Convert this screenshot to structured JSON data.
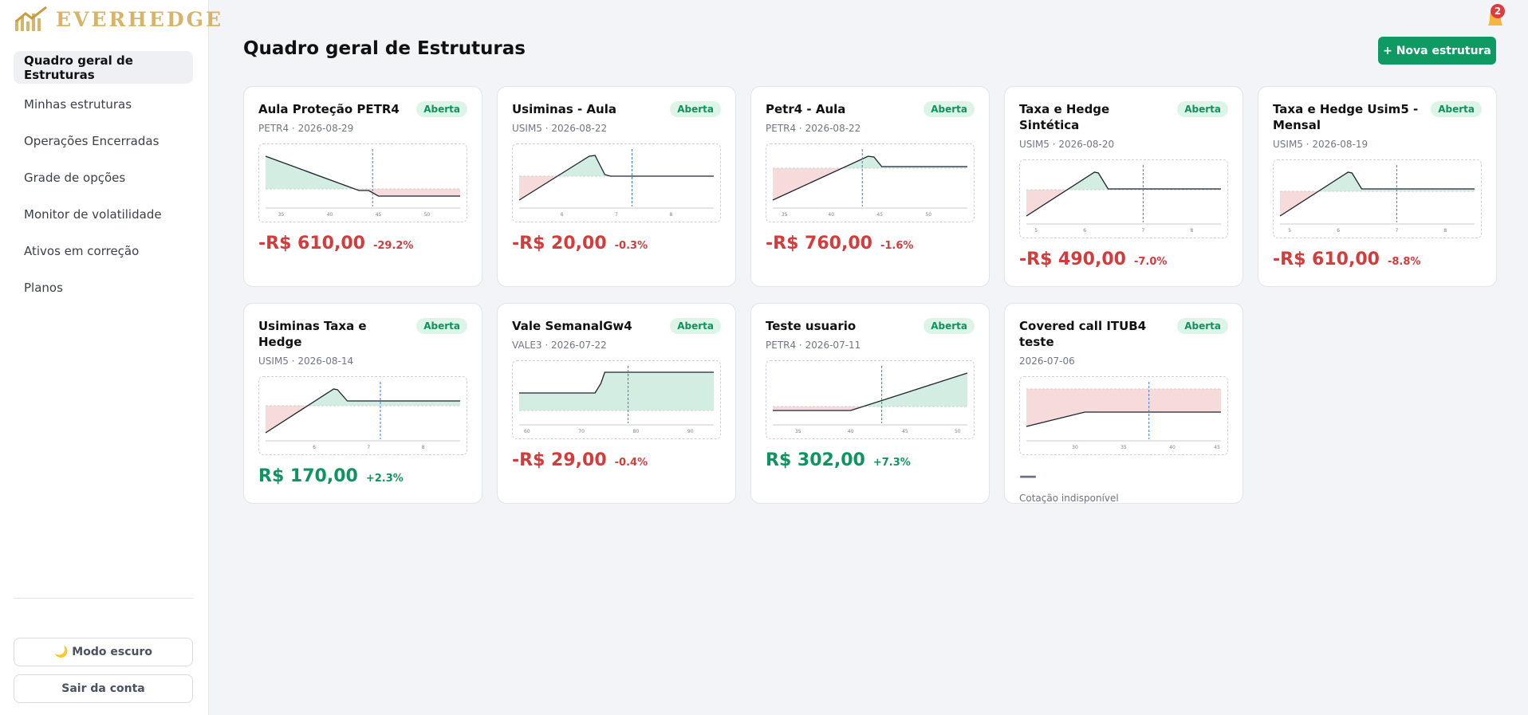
{
  "logo": "EVERHEDGE",
  "nav": [
    "Quadro geral de Estruturas",
    "Minhas estruturas",
    "Operações Encerradas",
    "Grade de opções",
    "Monitor de volatilidade",
    "Ativos em correção",
    "Planos"
  ],
  "footer_buttons": [
    "🌙 Modo escuro",
    "Sair da conta"
  ],
  "header": {
    "title": "Quadro geral de Estruturas",
    "button": "+ Nova estrutura",
    "notification_count": 2
  },
  "cards": [
    {
      "title": "Aula Proteção PETR4",
      "status": "Aberta",
      "subtitle": "PETR4 · 2026-08-29",
      "chart_ticks": [
        35,
        40,
        45,
        50
      ],
      "pnl": "-R$ 610,00",
      "change": "-29.2%"
    },
    {
      "title": "Usiminas - Aula",
      "status": "Aberta",
      "subtitle": "USIM5 · 2026-08-22",
      "chart_ticks": [
        6,
        7,
        8
      ],
      "pnl": "-R$ 20,00",
      "change": "-0.3%"
    },
    {
      "title": "Petr4 - Aula",
      "status": "Aberta",
      "subtitle": "PETR4 · 2026-08-22",
      "chart_ticks": [
        35,
        40,
        45,
        50
      ],
      "pnl": "-R$ 760,00",
      "change": "-1.6%"
    },
    {
      "title": "Taxa e Hedge Sintética",
      "status": "Aberta",
      "subtitle": "USIM5 · 2026-08-20",
      "chart_ticks": [
        5,
        6,
        7,
        8
      ],
      "pnl": "-R$ 490,00",
      "change": "-7.0%"
    },
    {
      "title": "Taxa e Hedge Usim5 - Mensal",
      "status": "Aberta",
      "subtitle": "USIM5 · 2026-08-19",
      "chart_ticks": [
        5,
        6,
        7,
        8
      ],
      "pnl": "-R$ 610,00",
      "change": "-8.8%"
    },
    {
      "title": "Usiminas Taxa e Hedge",
      "status": "Aberta",
      "subtitle": "USIM5 · 2026-08-14",
      "chart_ticks": [
        6,
        7,
        8
      ],
      "pnl": "R$ 170,00",
      "change": "+2.3%"
    },
    {
      "title": "Vale SemanalGw4",
      "status": "Aberta",
      "subtitle": "VALE3 · 2026-07-22",
      "chart_ticks": [
        60,
        70,
        80,
        90
      ],
      "pnl": "-R$ 29,00",
      "change": "-0.4%"
    },
    {
      "title": "Teste usuario",
      "status": "Aberta",
      "subtitle": "PETR4 · 2026-07-11",
      "chart_ticks": [
        35,
        40,
        45,
        50
      ],
      "pnl": "R$ 302,00",
      "change": "+7.3%"
    },
    {
      "title": "Covered call ITUB4 teste",
      "status": "Aberta",
      "subtitle": "2026-07-06",
      "chart_ticks": [
        30,
        35,
        40,
        45
      ],
      "pnl": "—",
      "note": "Cotação indisponível"
    }
  ]
}
